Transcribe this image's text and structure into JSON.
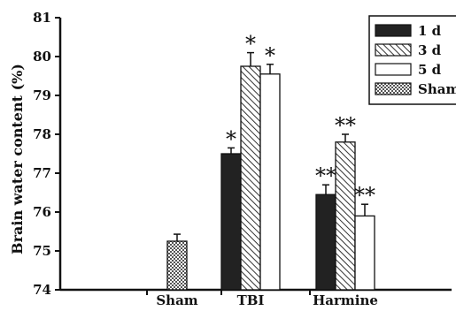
{
  "chart_data": {
    "type": "bar",
    "ylabel": "Brain water content (%)",
    "xlabel": "",
    "title": "",
    "ylim": [
      74,
      81
    ],
    "yticks": [
      74,
      75,
      76,
      77,
      78,
      79,
      80,
      81
    ],
    "groups": [
      "Sham",
      "TBI",
      "Harmine"
    ],
    "legend": {
      "placement": "top-right",
      "entries": [
        "1 d",
        "3 d",
        "5 d",
        "Sham"
      ]
    },
    "series": [
      {
        "name": "1 d",
        "pattern": "solid-dark",
        "values": [
          null,
          77.5,
          76.45
        ],
        "errors": [
          null,
          0.15,
          0.25
        ],
        "annotations": [
          "",
          "*",
          "**"
        ]
      },
      {
        "name": "3 d",
        "pattern": "diagonal-hatch",
        "values": [
          null,
          79.75,
          77.8
        ],
        "errors": [
          null,
          0.35,
          0.2
        ],
        "annotations": [
          "",
          "*",
          "**"
        ]
      },
      {
        "name": "5 d",
        "pattern": "white",
        "values": [
          null,
          79.55,
          75.9
        ],
        "errors": [
          null,
          0.25,
          0.3
        ],
        "annotations": [
          "",
          "*",
          "**"
        ]
      },
      {
        "name": "Sham",
        "pattern": "crosshatch",
        "values": [
          75.25,
          null,
          null
        ],
        "errors": [
          0.18,
          null,
          null
        ],
        "annotations": [
          "",
          "",
          ""
        ]
      }
    ]
  }
}
